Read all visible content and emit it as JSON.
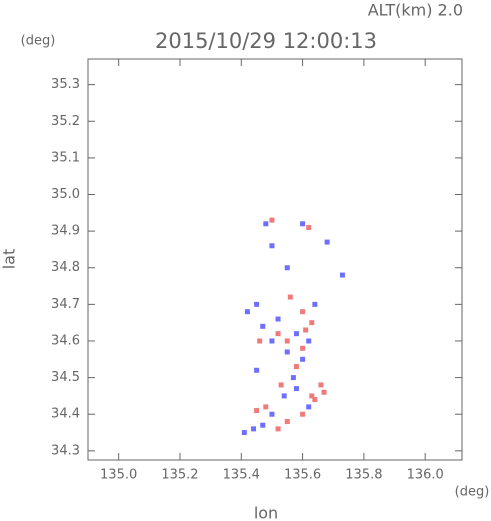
{
  "chart_data": {
    "type": "scatter",
    "title": "2015/10/29 12:00:13",
    "subtitle": "ALT(km) 2.0",
    "y_unit": "(deg)",
    "x_unit": "(deg)",
    "xlabel": "lon",
    "ylabel": "lat",
    "xlim": [
      134.9,
      136.12
    ],
    "ylim": [
      34.275,
      35.37
    ],
    "xticks": [
      {
        "value": 135.0,
        "label": "135.0"
      },
      135.2,
      135.4,
      135.6,
      135.8,
      {
        "value": 136.0,
        "label": "136.0"
      }
    ],
    "yticks": [
      35.3,
      35.2,
      35.1,
      {
        "value": 35.0,
        "label": "35.0"
      },
      34.9,
      34.8,
      34.7,
      34.6,
      34.5,
      34.4,
      34.3
    ],
    "series": [
      {
        "color": "#6f6fff",
        "x": [
          135.48,
          135.6,
          135.5,
          135.55,
          135.68,
          135.73,
          135.45,
          135.42,
          135.47,
          135.52,
          135.58,
          135.55,
          135.6,
          135.62,
          135.57,
          135.54,
          135.58,
          135.62,
          135.5,
          135.44,
          135.41,
          135.47,
          135.64,
          135.5,
          135.45
        ],
        "y": [
          34.92,
          34.92,
          34.86,
          34.8,
          34.87,
          34.78,
          34.7,
          34.68,
          34.64,
          34.66,
          34.62,
          34.57,
          34.55,
          34.6,
          34.5,
          34.45,
          34.47,
          34.42,
          34.4,
          34.36,
          34.35,
          34.37,
          34.7,
          34.6,
          34.52
        ]
      },
      {
        "color": "#f07a7a",
        "x": [
          135.5,
          135.62,
          135.56,
          135.6,
          135.63,
          135.52,
          135.55,
          135.6,
          135.58,
          135.53,
          135.66,
          135.63,
          135.6,
          135.55,
          135.52,
          135.45,
          135.48,
          135.64,
          135.67,
          135.46,
          135.61
        ],
        "y": [
          34.93,
          34.91,
          34.72,
          34.68,
          34.65,
          34.62,
          34.6,
          34.58,
          34.53,
          34.48,
          34.48,
          34.45,
          34.4,
          34.38,
          34.36,
          34.41,
          34.42,
          34.44,
          34.46,
          34.6,
          34.63
        ]
      }
    ]
  }
}
